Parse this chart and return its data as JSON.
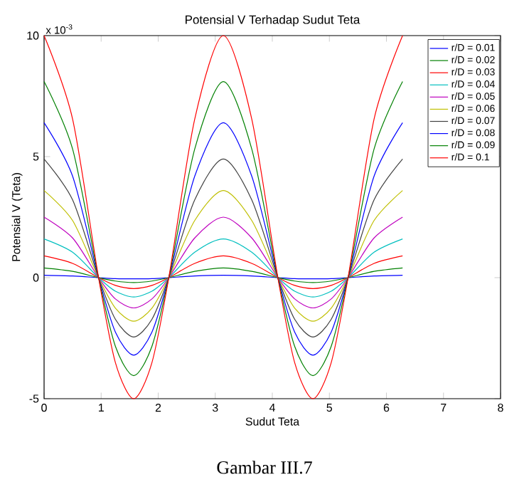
{
  "chart_data": {
    "type": "line",
    "title": "Potensial V Terhadap Sudut Teta",
    "xlabel": "Sudut Teta",
    "ylabel": "Potensial V (Teta)",
    "annotations": [
      "x 10$^{-3}$",
      "Gambar III.7"
    ],
    "x": [
      0,
      0.5,
      0.955,
      1.25,
      1.571,
      1.89,
      2.186,
      2.64,
      3.142,
      3.64,
      4.097,
      4.392,
      4.712,
      5.032,
      5.328,
      5.783,
      6.283
    ],
    "series": [
      {
        "name": "r/D = 0.01",
        "color": "#0000ff",
        "values": [
          0.1,
          0.07,
          0,
          -0.04,
          -0.05,
          -0.04,
          0,
          0.07,
          0.1,
          0.07,
          0,
          -0.04,
          -0.05,
          -0.04,
          0,
          0.07,
          0.1
        ]
      },
      {
        "name": "r/D = 0.02",
        "color": "#008000",
        "values": [
          0.4,
          0.26,
          0,
          -0.14,
          -0.2,
          -0.14,
          0,
          0.26,
          0.4,
          0.26,
          0,
          -0.14,
          -0.2,
          -0.14,
          0,
          0.26,
          0.4
        ]
      },
      {
        "name": "r/D = 0.03",
        "color": "#ff0000",
        "values": [
          0.9,
          0.59,
          0,
          -0.32,
          -0.45,
          -0.32,
          0,
          0.59,
          0.9,
          0.59,
          0,
          -0.32,
          -0.45,
          -0.32,
          0,
          0.59,
          0.9
        ]
      },
      {
        "name": "r/D = 0.04",
        "color": "#00bfbf",
        "values": [
          1.6,
          1.05,
          0,
          -0.56,
          -0.8,
          -0.56,
          0,
          1.05,
          1.6,
          1.05,
          0,
          -0.56,
          -0.8,
          -0.56,
          0,
          1.05,
          1.6
        ]
      },
      {
        "name": "r/D = 0.05",
        "color": "#bf00bf",
        "values": [
          2.5,
          1.64,
          0,
          -0.88,
          -1.25,
          -0.88,
          0,
          1.64,
          2.5,
          1.64,
          0,
          -0.88,
          -1.25,
          -0.88,
          0,
          1.64,
          2.5
        ]
      },
      {
        "name": "r/D = 0.06",
        "color": "#bfbf00",
        "values": [
          3.6,
          2.36,
          0,
          -1.26,
          -1.8,
          -1.26,
          0,
          2.36,
          3.6,
          2.36,
          0,
          -1.26,
          -1.8,
          -1.26,
          0,
          2.36,
          3.6
        ]
      },
      {
        "name": "r/D = 0.07",
        "color": "#404040",
        "values": [
          4.9,
          3.21,
          0,
          -1.72,
          -2.45,
          -1.72,
          0,
          3.21,
          4.9,
          3.21,
          0,
          -1.72,
          -2.45,
          -1.72,
          0,
          3.21,
          4.9
        ]
      },
      {
        "name": "r/D = 0.08",
        "color": "#0000ff",
        "values": [
          6.4,
          4.19,
          0,
          -2.25,
          -3.2,
          -2.25,
          0,
          4.19,
          6.4,
          4.19,
          0,
          -2.25,
          -3.2,
          -2.25,
          0,
          4.19,
          6.4
        ]
      },
      {
        "name": "r/D = 0.09",
        "color": "#008000",
        "values": [
          8.1,
          5.31,
          0,
          -2.84,
          -4.05,
          -2.84,
          0,
          5.31,
          8.1,
          5.31,
          0,
          -2.84,
          -4.05,
          -2.84,
          0,
          5.31,
          8.1
        ]
      },
      {
        "name": "r/D = 0.1",
        "color": "#ff0000",
        "values": [
          10,
          6.55,
          0,
          -3.51,
          -5,
          -3.51,
          0,
          6.55,
          10,
          6.55,
          0,
          -3.51,
          -5,
          -3.51,
          0,
          6.55,
          10
        ]
      }
    ],
    "xlim": [
      0,
      8
    ],
    "ylim": [
      -5,
      10
    ],
    "xticks": [
      0,
      1,
      2,
      3,
      4,
      5,
      6,
      7,
      8
    ],
    "yticks": [
      -5,
      0,
      5,
      10
    ],
    "grid": false,
    "legend": "top right",
    "marker": "none",
    "line_style": "solid"
  }
}
